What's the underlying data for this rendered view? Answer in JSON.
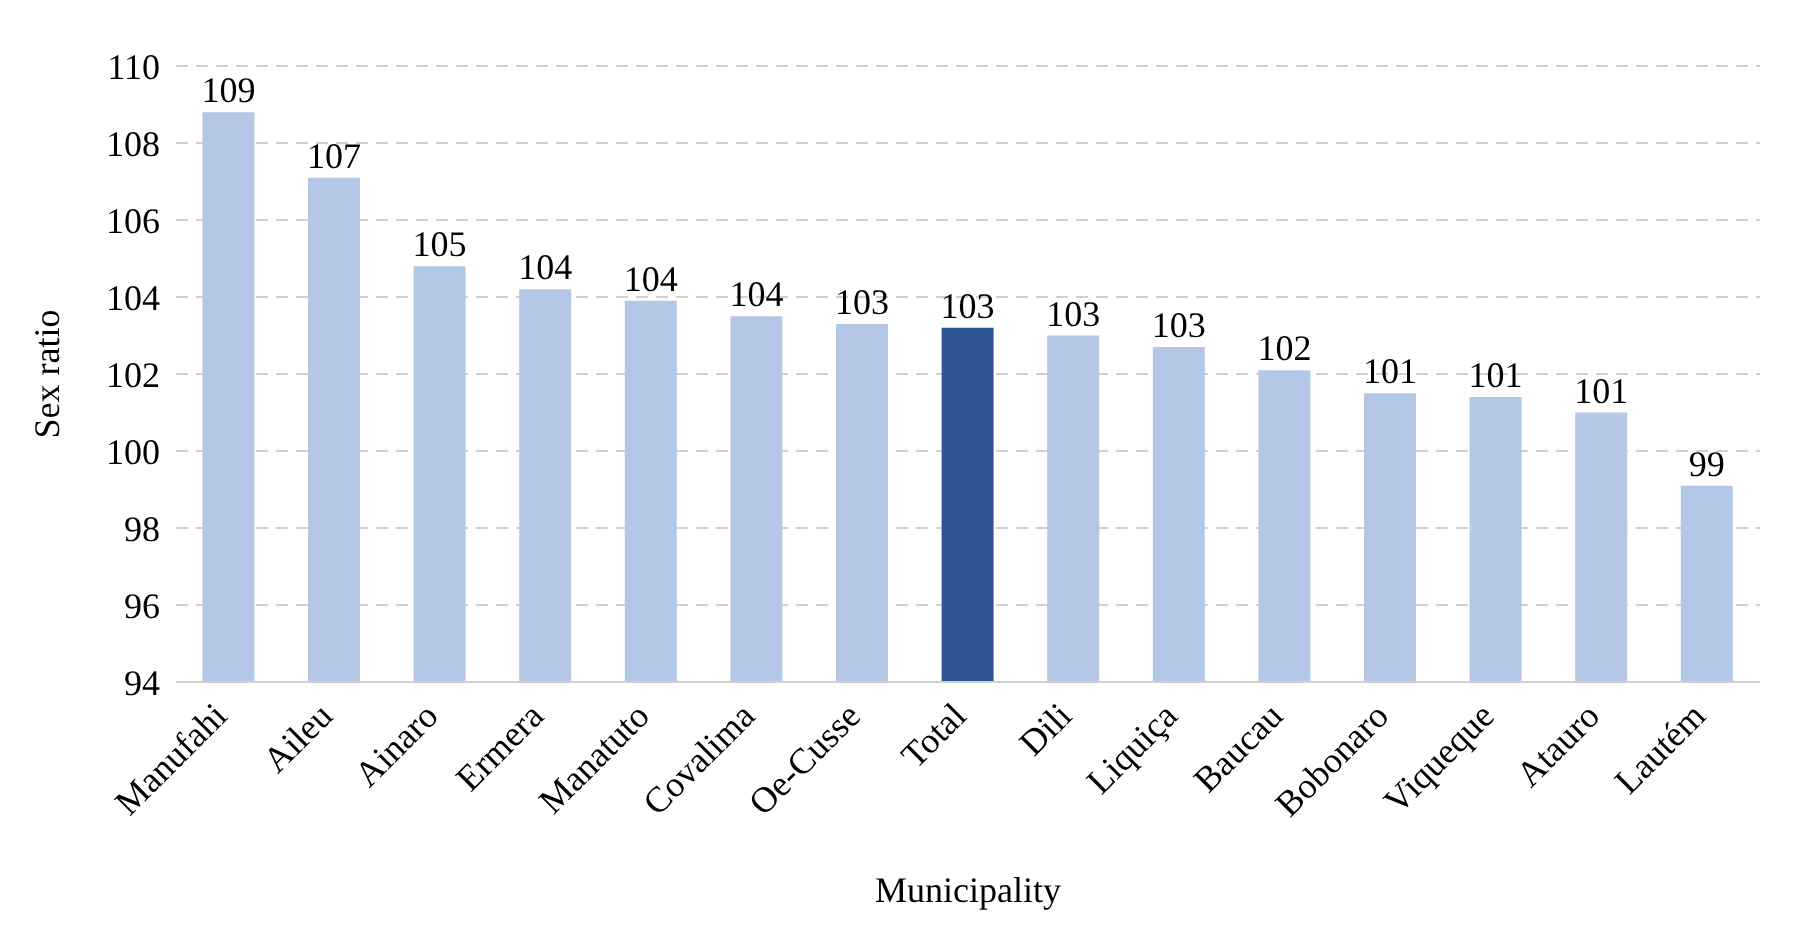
{
  "chart_data": {
    "type": "bar",
    "xlabel": "Municipality",
    "ylabel": "Sex ratio",
    "categories": [
      "Manufahi",
      "Aileu",
      "Ainaro",
      "Ermera",
      "Manatuto",
      "Covalima",
      "Oe-Cusse",
      "Total",
      "Dili",
      "Liquiça",
      "Baucau",
      "Bobonaro",
      "Viqueque",
      "Atauro",
      "Lautém"
    ],
    "values": [
      108.8,
      107.1,
      104.8,
      104.2,
      103.9,
      103.5,
      103.3,
      103.2,
      103.0,
      102.7,
      102.1,
      101.5,
      101.4,
      101.0,
      99.1
    ],
    "colors": [
      "#b4c7e7",
      "#b4c7e7",
      "#b4c7e7",
      "#b4c7e7",
      "#b4c7e7",
      "#b4c7e7",
      "#b4c7e7",
      "#2f5597",
      "#b4c7e7",
      "#b4c7e7",
      "#b4c7e7",
      "#b4c7e7",
      "#b4c7e7",
      "#b4c7e7",
      "#b4c7e7"
    ],
    "value_labels": [
      "109",
      "107",
      "105",
      "104",
      "104",
      "104",
      "103",
      "103",
      "103",
      "103",
      "102",
      "101",
      "101",
      "101",
      "99"
    ],
    "ylim": [
      94,
      110
    ],
    "yticks": [
      94,
      96,
      98,
      100,
      102,
      104,
      106,
      108,
      110
    ],
    "grid": "y"
  }
}
